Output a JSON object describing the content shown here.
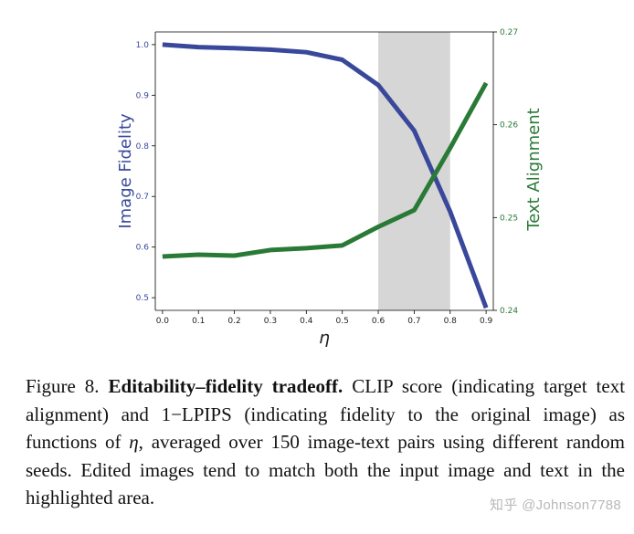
{
  "chart_data": {
    "type": "line",
    "x": [
      0.0,
      0.1,
      0.2,
      0.3,
      0.4,
      0.5,
      0.6,
      0.7,
      0.8,
      0.9
    ],
    "series": [
      {
        "name": "Image Fidelity",
        "axis": "left",
        "color": "#39489a",
        "values": [
          1.0,
          0.995,
          0.993,
          0.99,
          0.985,
          0.97,
          0.92,
          0.83,
          0.67,
          0.48
        ]
      },
      {
        "name": "Text Alignment",
        "axis": "right",
        "color": "#2a7a37",
        "values": [
          0.2458,
          0.246,
          0.2459,
          0.2465,
          0.2467,
          0.247,
          0.249,
          0.2508,
          0.2575,
          0.2645
        ]
      }
    ],
    "xlabel": "η",
    "ylabel": "Image Fidelity",
    "y2label": "Text Alignment",
    "xlim": [
      -0.02,
      0.92
    ],
    "ylim": [
      0.475,
      1.025
    ],
    "y2lim": [
      0.24,
      0.27
    ],
    "xticks": [
      "0.0",
      "0.1",
      "0.2",
      "0.3",
      "0.4",
      "0.5",
      "0.6",
      "0.7",
      "0.8",
      "0.9"
    ],
    "yticks": [
      "0.5",
      "0.6",
      "0.7",
      "0.8",
      "0.9",
      "1.0"
    ],
    "y2ticks": [
      "0.24",
      "0.25",
      "0.26",
      "0.27"
    ],
    "highlight": {
      "from": 0.6,
      "to": 0.8,
      "color": "#d6d6d6"
    },
    "grid": false
  },
  "caption": {
    "lead": "Figure 8.",
    "bold": "Editability–fidelity tradeoff.",
    "part1": "CLIP score (indicating target text alignment) and 1−LPIPS (indicating fidelity to the original image) as functions of",
    "eta": "η",
    "part2": ", averaged over 150 image-text pairs using different random seeds. Edited images tend to match both the input image and text in the highlighted area."
  },
  "watermark": "知乎 @Johnson7788"
}
